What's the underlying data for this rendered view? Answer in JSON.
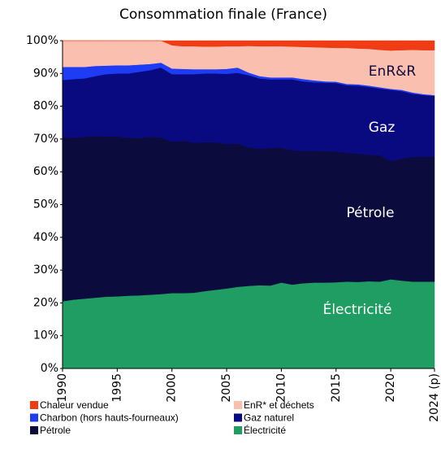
{
  "chart_data": {
    "type": "stacked_area",
    "title": "Consommation finale (France)",
    "x": [
      1990,
      1991,
      1992,
      1993,
      1994,
      1995,
      1996,
      1997,
      1998,
      1999,
      2000,
      2001,
      2002,
      2003,
      2004,
      2005,
      2006,
      2007,
      2008,
      2009,
      2010,
      2011,
      2012,
      2013,
      2014,
      2015,
      2016,
      2017,
      2018,
      2019,
      2020,
      2021,
      2022,
      2023,
      2024
    ],
    "xlim": [
      1990,
      2024
    ],
    "xticks": [
      1990,
      1995,
      2000,
      2005,
      2010,
      2015,
      2020,
      {
        "value": 2024,
        "label": "2024 (p)"
      }
    ],
    "ylim": [
      0,
      100
    ],
    "yticks": [
      {
        "value": 0,
        "label": "0%"
      },
      {
        "value": 10,
        "label": "10%"
      },
      {
        "value": 20,
        "label": "20%"
      },
      {
        "value": 30,
        "label": "30%"
      },
      {
        "value": 40,
        "label": "40%"
      },
      {
        "value": 50,
        "label": "50%"
      },
      {
        "value": 60,
        "label": "60%"
      },
      {
        "value": 70,
        "label": "70%"
      },
      {
        "value": 80,
        "label": "80%"
      },
      {
        "value": 90,
        "label": "90%"
      },
      {
        "value": 100,
        "label": "100%"
      }
    ],
    "grid": false,
    "legend_position": "bottom",
    "annotations": [
      "EnR&R",
      "Gaz",
      "Pétrole",
      "Électricité"
    ],
    "series": [
      {
        "name": "Chaleur vendue",
        "color": "#f03c14",
        "values": [
          0,
          0,
          0,
          0,
          0,
          0,
          0,
          0,
          0,
          0,
          1.4,
          1.7,
          1.7,
          1.8,
          1.8,
          1.7,
          1.7,
          1.6,
          1.7,
          1.7,
          1.7,
          1.8,
          1.9,
          2,
          2.1,
          2.2,
          2.2,
          2.4,
          2.5,
          2.8,
          3,
          2.9,
          2.8,
          2.9,
          2.9
        ]
      },
      {
        "name": "EnR* et déchets",
        "color": "#fbbfb0",
        "values": [
          8,
          8,
          8,
          7.7,
          7.6,
          7.5,
          7.5,
          7.3,
          7.1,
          6.7,
          7.1,
          6.9,
          7,
          6.9,
          6.9,
          6.9,
          6.5,
          8.1,
          9.1,
          9.5,
          9.5,
          9.4,
          9.8,
          10.1,
          10.3,
          10.3,
          11,
          10.9,
          11.2,
          11.4,
          11.7,
          12.1,
          13,
          13.4,
          13.7
        ]
      },
      {
        "name": "Charbon (hors hauts-fourneaux)",
        "color": "#1f3cf5",
        "values": [
          4,
          3.7,
          3.5,
          3.1,
          2.6,
          2.5,
          2.5,
          2.2,
          1.9,
          1.5,
          1.7,
          1.6,
          1.5,
          1.3,
          1.3,
          1.5,
          1.6,
          0.8,
          0.7,
          0.6,
          0.6,
          0.6,
          0.7,
          0.6,
          0.4,
          0.4,
          0.4,
          0.4,
          0.4,
          0.4,
          0.3,
          0.4,
          0.4,
          0.3,
          0.2
        ]
      },
      {
        "name": "Gaz naturel",
        "color": "#0a0a80",
        "values": [
          17.5,
          17.9,
          17.8,
          18.3,
          19,
          19.2,
          19.6,
          20.2,
          20.3,
          21.3,
          20.6,
          20.3,
          20.9,
          21,
          21,
          21.4,
          21.6,
          22,
          21.5,
          20.9,
          20.9,
          21.6,
          21.2,
          20.9,
          20.9,
          20.9,
          20.6,
          20.7,
          20.7,
          20.4,
          21.7,
          20.6,
          19.2,
          18.8,
          18.6
        ]
      },
      {
        "name": "Pétrole",
        "color": "#0b0b3d",
        "values": [
          50,
          49.4,
          49.4,
          49.3,
          48.9,
          48.8,
          48.2,
          48,
          48.2,
          47.8,
          46.2,
          46.5,
          45.8,
          45.4,
          45,
          44.1,
          43.7,
          42.3,
          41.6,
          42,
          41.1,
          41,
          40.4,
          40.2,
          40.1,
          39.9,
          39.3,
          39.2,
          38.6,
          38.5,
          36.1,
          37.2,
          38.1,
          38.1,
          38.1
        ]
      },
      {
        "name": "Électricité",
        "color": "#1f9d63",
        "values": [
          20.5,
          21,
          21.3,
          21.6,
          21.9,
          22,
          22.2,
          22.3,
          22.5,
          22.7,
          23,
          23,
          23.1,
          23.6,
          24,
          24.4,
          24.9,
          25.2,
          25.4,
          25.3,
          26.2,
          25.6,
          26,
          26.2,
          26.2,
          26.3,
          26.5,
          26.4,
          26.6,
          26.5,
          27.2,
          26.8,
          26.5,
          26.5,
          26.5
        ]
      }
    ]
  }
}
